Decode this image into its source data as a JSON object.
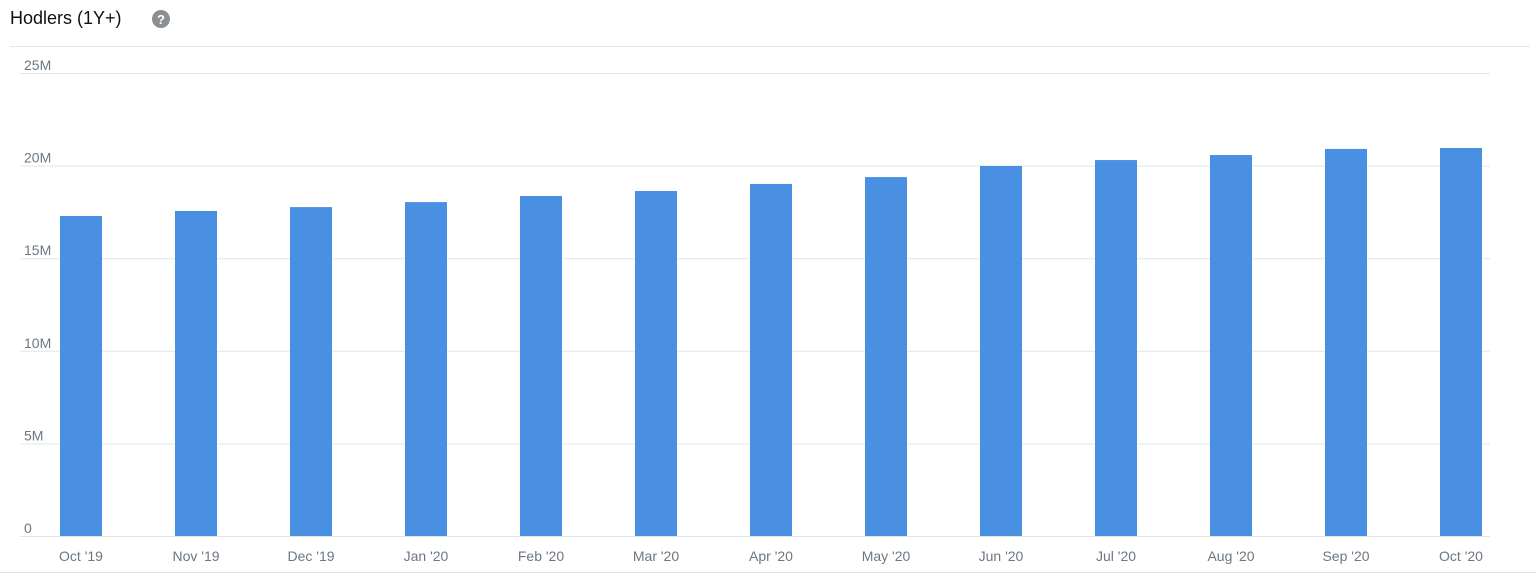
{
  "chart_data": {
    "type": "bar",
    "title": "Hodlers (1Y+)",
    "categories": [
      "Oct '19",
      "Nov '19",
      "Dec '19",
      "Jan '20",
      "Feb '20",
      "Mar '20",
      "Apr '20",
      "May '20",
      "Jun '20",
      "Jul '20",
      "Aug '20",
      "Sep '20",
      "Oct '20"
    ],
    "values": [
      17280000,
      17550000,
      17760000,
      18030000,
      18360000,
      18630000,
      19010000,
      19380000,
      19980000,
      20300000,
      20570000,
      20900000,
      20950000
    ],
    "color": "#4a90e2",
    "ylim": [
      0,
      25000000
    ],
    "yticks": [
      0,
      {
        "value": 5000000,
        "label": "5M"
      },
      {
        "value": 10000000,
        "label": "10M"
      },
      {
        "value": 15000000,
        "label": "15M"
      },
      {
        "value": 20000000,
        "label": "20M"
      },
      {
        "value": 25000000,
        "label": "25M"
      }
    ],
    "grid": true
  }
}
